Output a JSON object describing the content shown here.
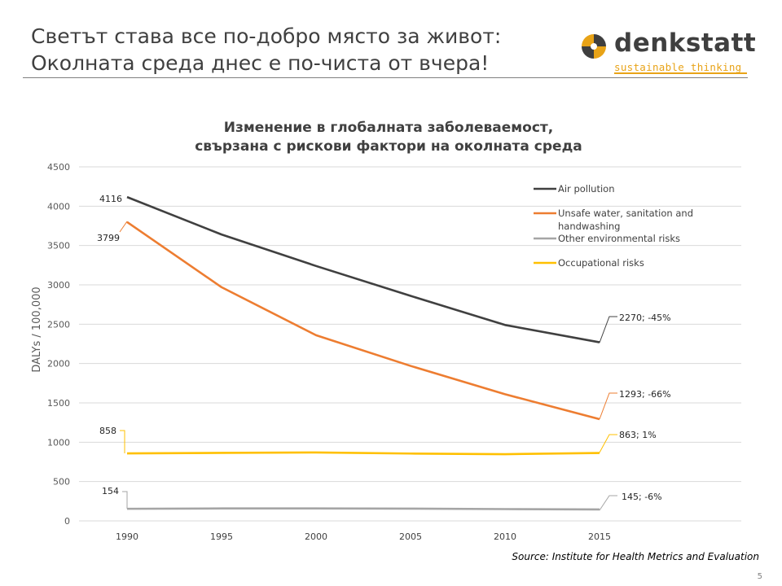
{
  "slide": {
    "title_line1": "Светът става все по-добро място за живот:",
    "title_line2": "Околната среда днес е по-чиста от вчера!",
    "logo_name": "denkstatt",
    "logo_tagline": "sustainable thinking",
    "source": "Source: Institute for Health Metrics and Evaluation",
    "page_number": "5"
  },
  "colors": {
    "air": "#404040",
    "water": "#ed7d31",
    "other": "#a5a5a5",
    "occupational": "#ffc000",
    "grid": "#d9d9d9",
    "logo_dark": "#3f3f3f",
    "logo_accent": "#e8a317"
  },
  "chart_data": {
    "type": "line",
    "title_line1": "Изменение в глобалната заболеваемост,",
    "title_line2": "свързана с рискови фактори на околната среда",
    "xlabel": "",
    "ylabel": "DALYs / 100,000",
    "x": [
      1990,
      1995,
      2000,
      2005,
      2010,
      2015
    ],
    "x_tick_labels": [
      "1990",
      "1995",
      "2000",
      "2005",
      "2010",
      "2015"
    ],
    "ylim": [
      0,
      4500
    ],
    "y_ticks": [
      0,
      500,
      1000,
      1500,
      2000,
      2500,
      3000,
      3500,
      4000,
      4500
    ],
    "y_tick_labels": [
      "0",
      "500",
      "1000",
      "1500",
      "2000",
      "2500",
      "3000",
      "3500",
      "4000",
      "4500"
    ],
    "grid": true,
    "legend_position": "top-right",
    "series": [
      {
        "key": "air",
        "name": "Air pollution",
        "color": "#404040",
        "values": [
          4116,
          3640,
          3240,
          2860,
          2490,
          2270
        ],
        "start_label": "4116",
        "end_label": "2270; -45%"
      },
      {
        "key": "water",
        "name": "Unsafe water, sanitation and handwashing",
        "color": "#ed7d31",
        "values": [
          3799,
          2970,
          2360,
          1970,
          1610,
          1293
        ],
        "start_label": "3799",
        "end_label": "1293; -66%"
      },
      {
        "key": "other",
        "name": "Other environmental risks",
        "color": "#a5a5a5",
        "values": [
          154,
          158,
          158,
          156,
          150,
          145
        ],
        "start_label": "154",
        "end_label": "145; -6%"
      },
      {
        "key": "occupational",
        "name": "Occupational risks",
        "color": "#ffc000",
        "values": [
          858,
          864,
          870,
          856,
          848,
          863
        ],
        "start_label": "858",
        "end_label": "863; 1%"
      }
    ]
  }
}
